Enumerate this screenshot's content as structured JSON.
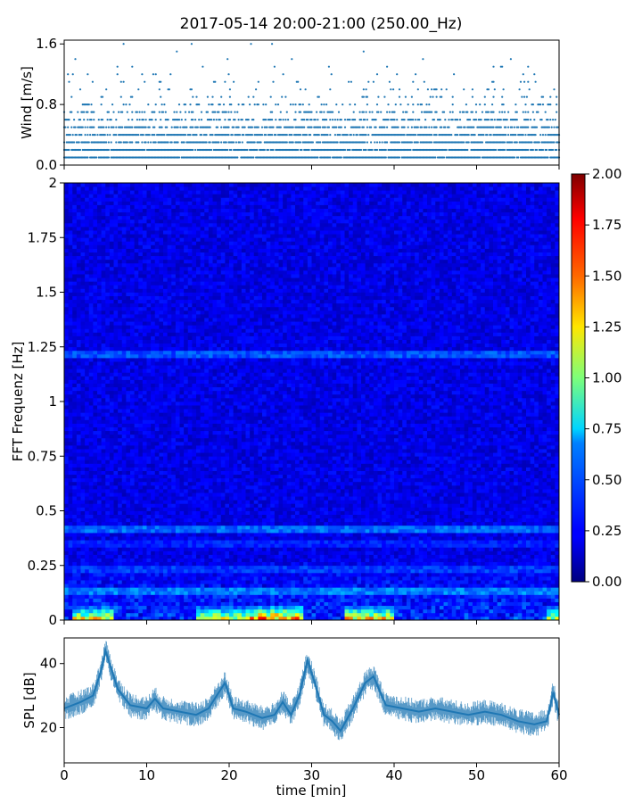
{
  "figure": {
    "title": "2017-05-14 20:00-21:00 (250.00_Hz)",
    "colors": {
      "scatter": "#1f77b4",
      "line": "#1f77b4",
      "axis": "#000000"
    }
  },
  "chart_data": [
    {
      "type": "scatter",
      "panel": "wind",
      "ylabel": "Wind [m/s]",
      "xlim": [
        0,
        60
      ],
      "ylim": [
        0.0,
        1.65
      ],
      "yticks": [
        0.0,
        0.8,
        1.6
      ],
      "ytick_labels": [
        "0.0",
        "0.8",
        "1.6"
      ],
      "levels": [
        0.1,
        0.2,
        0.3,
        0.4,
        0.5,
        0.6,
        0.7,
        0.8,
        0.9,
        1.0,
        1.1,
        1.2,
        1.3,
        1.4,
        1.5,
        1.6
      ],
      "level_density": [
        0.95,
        0.9,
        0.85,
        0.8,
        0.7,
        0.55,
        0.35,
        0.2,
        0.12,
        0.08,
        0.05,
        0.03,
        0.02,
        0.015,
        0.01,
        0.005
      ],
      "x_step_min": 0.15,
      "series_color": "#1f77b4"
    },
    {
      "type": "heatmap",
      "panel": "spectrogram",
      "ylabel": "FFT Frequenz [Hz]",
      "xlim": [
        0,
        60
      ],
      "ylim": [
        0,
        2
      ],
      "yticks": [
        0,
        0.25,
        0.5,
        0.75,
        1,
        1.25,
        1.5,
        1.75,
        2
      ],
      "ytick_labels": [
        "0",
        "0.25",
        "0.5",
        "0.75",
        "1",
        "1.25",
        "1.5",
        "1.75",
        "2"
      ],
      "colormap": "jet",
      "colorbar": {
        "vmin": 0.0,
        "vmax": 2.0,
        "ticks": [
          "0.00",
          "0.25",
          "0.50",
          "0.75",
          "1.00",
          "1.25",
          "1.50",
          "1.75",
          "2.00"
        ]
      },
      "n_time_bins": 120,
      "n_freq_bins": 120,
      "base_level": 0.2,
      "low_freq_hotspots": [
        {
          "t": [
            1,
            6
          ],
          "value": 1.6
        },
        {
          "t": [
            16,
            22
          ],
          "value": 1.5
        },
        {
          "t": [
            22,
            29
          ],
          "value": 1.9
        },
        {
          "t": [
            34,
            40
          ],
          "value": 1.7
        },
        {
          "t": [
            58.5,
            60
          ],
          "value": 1.4
        }
      ],
      "lines": [
        {
          "freq": 0.13,
          "value": 0.55
        },
        {
          "freq": 0.24,
          "value": 0.4
        },
        {
          "freq": 0.35,
          "value": 0.35
        },
        {
          "freq": 0.42,
          "value": 0.5
        },
        {
          "freq": 1.22,
          "value": 0.45
        }
      ]
    },
    {
      "type": "line",
      "panel": "spl",
      "ylabel": "SPL [dB]",
      "xlabel": "time [min]",
      "xlim": [
        0,
        60
      ],
      "ylim": [
        9,
        48
      ],
      "yticks": [
        20,
        40
      ],
      "ytick_labels": [
        "20",
        "40"
      ],
      "xticks": [
        0,
        10,
        20,
        30,
        40,
        50,
        60
      ],
      "xtick_labels": [
        "0",
        "10",
        "20",
        "30",
        "40",
        "50",
        "60"
      ],
      "x": [
        0,
        2,
        3.5,
        4.5,
        5,
        5.5,
        6.5,
        8,
        10,
        11,
        12,
        14,
        16,
        17.5,
        18.5,
        19.5,
        20.5,
        22,
        24,
        25.5,
        26.5,
        27.5,
        28.5,
        29.5,
        30.5,
        31.5,
        32.5,
        33.5,
        35,
        36.5,
        37.5,
        39,
        41,
        43,
        45,
        47,
        49,
        51,
        53,
        55,
        57,
        58.5,
        59.3,
        60
      ],
      "y": [
        26,
        28,
        30,
        38,
        44,
        40,
        32,
        27,
        26,
        29,
        26,
        25,
        24,
        26,
        30,
        34,
        26,
        25,
        23,
        24,
        28,
        24,
        30,
        41,
        33,
        24,
        22,
        19,
        26,
        34,
        36,
        27,
        26,
        25,
        26,
        25,
        24,
        25,
        24,
        22,
        21,
        22,
        31,
        24
      ],
      "noise_band_db": 3,
      "series_color": "#1f77b4"
    }
  ]
}
